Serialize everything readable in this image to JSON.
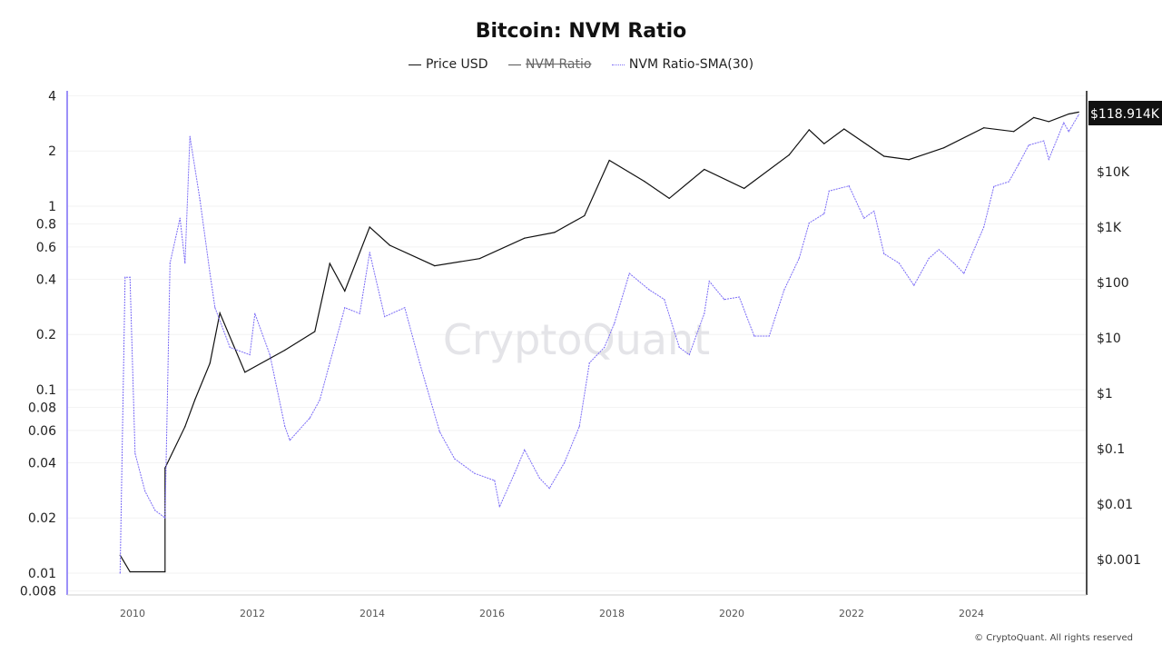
{
  "chart_data": {
    "type": "line",
    "title": "Bitcoin: NVM Ratio",
    "legend": [
      {
        "name": "Price USD",
        "color": "#111111",
        "style": "solid",
        "hidden": false
      },
      {
        "name": "NVM Ratio",
        "color": "#555555",
        "style": "solid",
        "hidden": true
      },
      {
        "name": "NVM Ratio-SMA(30)",
        "color": "#7b6cf6",
        "style": "dotted",
        "hidden": false
      }
    ],
    "legend_position": "top-center",
    "x_ticks": [
      "2010",
      "2012",
      "2014",
      "2016",
      "2018",
      "2020",
      "2022",
      "2024"
    ],
    "left_axis": {
      "scale": "log",
      "ticks": [
        "4",
        "2",
        "1",
        "0.8",
        "0.6",
        "0.4",
        "0.2",
        "0.1",
        "0.08",
        "0.06",
        "0.04",
        "0.02",
        "0.01",
        "0.008"
      ],
      "color": "#7b6cf6"
    },
    "right_axis": {
      "scale": "log",
      "ticks": [
        "$10K",
        "$1K",
        "$100",
        "$10",
        "$1",
        "$0.1",
        "$0.01",
        "$0.001"
      ],
      "last_value_label": "$118.914K",
      "color": "#111111"
    },
    "grid": true,
    "series": [
      {
        "name": "Price USD",
        "axis": "right",
        "points": [
          [
            "2009-10",
            0.0012
          ],
          [
            "2009-12",
            0.0006
          ],
          [
            "2010-07",
            0.0006
          ],
          [
            "2010-07",
            0.045
          ],
          [
            "2010-11",
            0.25
          ],
          [
            "2011-01",
            0.77
          ],
          [
            "2011-04",
            3.5
          ],
          [
            "2011-06",
            28
          ],
          [
            "2011-11",
            2.4
          ],
          [
            "2012-07",
            6
          ],
          [
            "2013-01",
            13
          ],
          [
            "2013-04",
            220
          ],
          [
            "2013-07",
            70
          ],
          [
            "2013-12",
            1000
          ],
          [
            "2014-04",
            470
          ],
          [
            "2015-01",
            200
          ],
          [
            "2015-10",
            270
          ],
          [
            "2016-07",
            630
          ],
          [
            "2017-01",
            800
          ],
          [
            "2017-07",
            1600
          ],
          [
            "2017-12",
            16000
          ],
          [
            "2018-07",
            6700
          ],
          [
            "2018-12",
            3300
          ],
          [
            "2019-07",
            11000
          ],
          [
            "2020-03",
            5000
          ],
          [
            "2020-12",
            20000
          ],
          [
            "2021-04",
            57000
          ],
          [
            "2021-07",
            32000
          ],
          [
            "2021-11",
            59000
          ],
          [
            "2022-07",
            19000
          ],
          [
            "2022-12",
            16500
          ],
          [
            "2023-07",
            27000
          ],
          [
            "2024-03",
            62000
          ],
          [
            "2024-09",
            53000
          ],
          [
            "2025-01",
            95000
          ],
          [
            "2025-04",
            80000
          ],
          [
            "2025-08",
            110000
          ],
          [
            "2025-10",
            118914
          ]
        ]
      },
      {
        "name": "NVM Ratio-SMA(30)",
        "axis": "left",
        "points": [
          [
            "2009-10",
            0.01
          ],
          [
            "2009-11",
            0.41
          ],
          [
            "2009-12",
            0.41
          ],
          [
            "2010-01",
            0.045
          ],
          [
            "2010-03",
            0.028
          ],
          [
            "2010-05",
            0.022
          ],
          [
            "2010-07",
            0.02
          ],
          [
            "2010-08",
            0.49
          ],
          [
            "2010-10",
            0.86
          ],
          [
            "2010-11",
            0.49
          ],
          [
            "2010-12",
            2.4
          ],
          [
            "2011-02",
            1.08
          ],
          [
            "2011-04",
            0.43
          ],
          [
            "2011-05",
            0.28
          ],
          [
            "2011-08",
            0.17
          ],
          [
            "2011-12",
            0.155
          ],
          [
            "2012-01",
            0.26
          ],
          [
            "2012-04",
            0.155
          ],
          [
            "2012-07",
            0.063
          ],
          [
            "2012-08",
            0.053
          ],
          [
            "2012-12",
            0.07
          ],
          [
            "2013-02",
            0.088
          ],
          [
            "2013-04",
            0.14
          ],
          [
            "2013-07",
            0.28
          ],
          [
            "2013-10",
            0.26
          ],
          [
            "2013-12",
            0.56
          ],
          [
            "2014-03",
            0.25
          ],
          [
            "2014-07",
            0.28
          ],
          [
            "2014-10",
            0.14
          ],
          [
            "2015-02",
            0.059
          ],
          [
            "2015-05",
            0.042
          ],
          [
            "2015-09",
            0.035
          ],
          [
            "2016-01",
            0.032
          ],
          [
            "2016-02",
            0.023
          ],
          [
            "2016-05",
            0.035
          ],
          [
            "2016-07",
            0.047
          ],
          [
            "2016-10",
            0.033
          ],
          [
            "2016-12",
            0.029
          ],
          [
            "2017-03",
            0.04
          ],
          [
            "2017-06",
            0.063
          ],
          [
            "2017-08",
            0.14
          ],
          [
            "2017-11",
            0.17
          ],
          [
            "2018-01",
            0.23
          ],
          [
            "2018-04",
            0.43
          ],
          [
            "2018-08",
            0.35
          ],
          [
            "2018-11",
            0.31
          ],
          [
            "2019-02",
            0.17
          ],
          [
            "2019-04",
            0.155
          ],
          [
            "2019-07",
            0.26
          ],
          [
            "2019-08",
            0.39
          ],
          [
            "2019-11",
            0.31
          ],
          [
            "2020-02",
            0.32
          ],
          [
            "2020-05",
            0.196
          ],
          [
            "2020-08",
            0.196
          ],
          [
            "2020-11",
            0.35
          ],
          [
            "2021-02",
            0.52
          ],
          [
            "2021-04",
            0.81
          ],
          [
            "2021-07",
            0.91
          ],
          [
            "2021-08",
            1.21
          ],
          [
            "2021-12",
            1.29
          ],
          [
            "2022-03",
            0.86
          ],
          [
            "2022-05",
            0.94
          ],
          [
            "2022-07",
            0.55
          ],
          [
            "2022-10",
            0.49
          ],
          [
            "2023-01",
            0.37
          ],
          [
            "2023-04",
            0.52
          ],
          [
            "2023-06",
            0.58
          ],
          [
            "2023-09",
            0.49
          ],
          [
            "2023-11",
            0.43
          ],
          [
            "2024-03",
            0.77
          ],
          [
            "2024-05",
            1.28
          ],
          [
            "2024-08",
            1.36
          ],
          [
            "2024-10",
            1.7
          ],
          [
            "2024-12",
            2.15
          ],
          [
            "2025-03",
            2.27
          ],
          [
            "2025-04",
            1.8
          ],
          [
            "2025-07",
            2.85
          ],
          [
            "2025-08",
            2.55
          ],
          [
            "2025-10",
            3.16
          ]
        ]
      }
    ]
  },
  "watermark": "CryptoQuant",
  "footer": "© CryptoQuant. All rights reserved"
}
